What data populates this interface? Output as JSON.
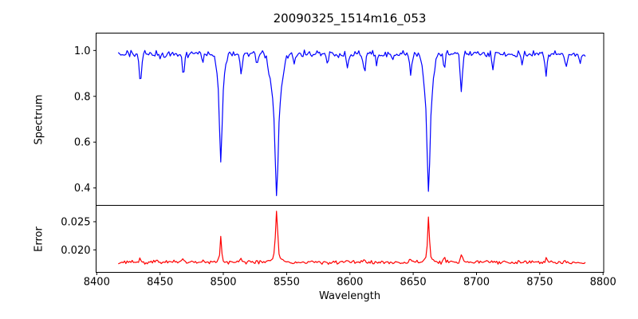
{
  "chart_data": {
    "type": "line",
    "title": "20090325_1514m16_053",
    "xlabel": "Wavelength",
    "axis_color": "#000000",
    "background_color": "#ffffff",
    "xlim": [
      8399.5,
      8800.5
    ],
    "x_ticks": [
      8400,
      8450,
      8500,
      8550,
      8600,
      8650,
      8700,
      8750,
      8800
    ],
    "x_data_range": [
      8417,
      8786
    ],
    "sampling_step": 1.0,
    "noise_seed": 20090325,
    "panels": [
      {
        "name": "spectrum",
        "ylabel": "Spectrum",
        "color": "#0000ff",
        "ylim": [
          0.324,
          1.076
        ],
        "y_ticks": [
          {
            "value": 0.4,
            "label": "0.4"
          },
          {
            "value": 0.6,
            "label": "0.6"
          },
          {
            "value": 0.8,
            "label": "0.8"
          },
          {
            "value": 1.0,
            "label": "1.0"
          }
        ],
        "continuum": 0.985,
        "noise_amplitude": 0.018,
        "absorption_lines": [
          {
            "center": 8434.5,
            "depth": 0.125,
            "sigma": 0.9
          },
          {
            "center": 8450.0,
            "depth": 0.03,
            "sigma": 0.7
          },
          {
            "center": 8468.5,
            "depth": 0.09,
            "sigma": 0.8
          },
          {
            "center": 8484.0,
            "depth": 0.035,
            "sigma": 0.6
          },
          {
            "center": 8498.0,
            "depth": 0.27,
            "sigma": 0.85
          },
          {
            "center": 8498.0,
            "depth": 0.21,
            "sigma": 2.3
          },
          {
            "center": 8514.0,
            "depth": 0.1,
            "sigma": 0.8
          },
          {
            "center": 8526.5,
            "depth": 0.06,
            "sigma": 0.7
          },
          {
            "center": 8536.0,
            "depth": 0.04,
            "sigma": 0.6
          },
          {
            "center": 8542.1,
            "depth": 0.33,
            "sigma": 1.0
          },
          {
            "center": 8542.1,
            "depth": 0.3,
            "sigma": 3.3
          },
          {
            "center": 8556.0,
            "depth": 0.055,
            "sigma": 0.7
          },
          {
            "center": 8582.0,
            "depth": 0.05,
            "sigma": 0.7
          },
          {
            "center": 8598.0,
            "depth": 0.06,
            "sigma": 0.7
          },
          {
            "center": 8611.5,
            "depth": 0.085,
            "sigma": 0.8
          },
          {
            "center": 8621.0,
            "depth": 0.055,
            "sigma": 0.7
          },
          {
            "center": 8634.0,
            "depth": 0.035,
            "sigma": 0.6
          },
          {
            "center": 8648.0,
            "depth": 0.085,
            "sigma": 0.8
          },
          {
            "center": 8662.1,
            "depth": 0.33,
            "sigma": 0.95
          },
          {
            "center": 8662.1,
            "depth": 0.285,
            "sigma": 2.9
          },
          {
            "center": 8674.5,
            "depth": 0.065,
            "sigma": 0.7
          },
          {
            "center": 8688.0,
            "depth": 0.17,
            "sigma": 0.9
          },
          {
            "center": 8713.0,
            "depth": 0.065,
            "sigma": 0.8
          },
          {
            "center": 8736.0,
            "depth": 0.05,
            "sigma": 0.7
          },
          {
            "center": 8755.0,
            "depth": 0.095,
            "sigma": 0.8
          },
          {
            "center": 8771.0,
            "depth": 0.07,
            "sigma": 0.7
          },
          {
            "center": 8782.0,
            "depth": 0.05,
            "sigma": 0.6
          }
        ]
      },
      {
        "name": "error",
        "ylabel": "Error",
        "color": "#ff0000",
        "ylim": [
          0.016,
          0.0279
        ],
        "y_ticks": [
          {
            "value": 0.02,
            "label": "0.020"
          },
          {
            "value": 0.025,
            "label": "0.025"
          }
        ],
        "baseline": 0.0178,
        "noise_amplitude": 0.0004,
        "peaks": [
          {
            "center": 8434.5,
            "height": 0.0005,
            "sigma": 0.9
          },
          {
            "center": 8468.5,
            "height": 0.0006,
            "sigma": 0.8
          },
          {
            "center": 8484.0,
            "height": 0.0005,
            "sigma": 0.6
          },
          {
            "center": 8498.0,
            "height": 0.0038,
            "sigma": 0.55
          },
          {
            "center": 8498.0,
            "height": 0.0007,
            "sigma": 2.0
          },
          {
            "center": 8514.0,
            "height": 0.0007,
            "sigma": 0.8
          },
          {
            "center": 8542.1,
            "height": 0.0075,
            "sigma": 0.75
          },
          {
            "center": 8542.1,
            "height": 0.0018,
            "sigma": 2.8
          },
          {
            "center": 8611.5,
            "height": 0.0005,
            "sigma": 0.8
          },
          {
            "center": 8648.0,
            "height": 0.0007,
            "sigma": 0.8
          },
          {
            "center": 8662.1,
            "height": 0.0065,
            "sigma": 0.65
          },
          {
            "center": 8662.1,
            "height": 0.0014,
            "sigma": 2.4
          },
          {
            "center": 8674.5,
            "height": 0.0007,
            "sigma": 0.7
          },
          {
            "center": 8688.0,
            "height": 0.0012,
            "sigma": 0.9
          },
          {
            "center": 8755.0,
            "height": 0.0006,
            "sigma": 0.8
          }
        ]
      }
    ]
  }
}
